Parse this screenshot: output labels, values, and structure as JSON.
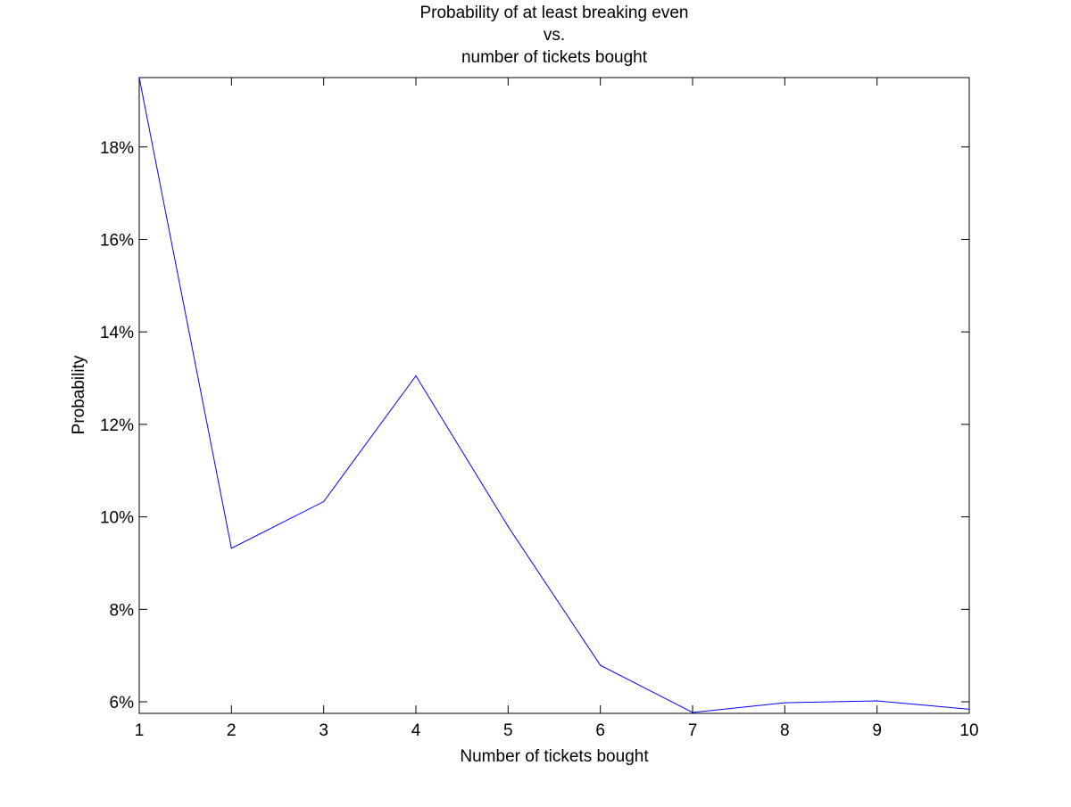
{
  "chart_data": {
    "type": "line",
    "title_lines": [
      "Probability of at least breaking even",
      "vs.",
      "number of tickets bought"
    ],
    "xlabel": "Number of tickets bought",
    "ylabel": "Probability",
    "xlim": [
      1,
      10
    ],
    "ylim": [
      0.0575,
      0.195
    ],
    "x_ticks": [
      1,
      2,
      3,
      4,
      5,
      6,
      7,
      8,
      9,
      10
    ],
    "x_tick_labels": [
      "1",
      "2",
      "3",
      "4",
      "5",
      "6",
      "7",
      "8",
      "9",
      "10"
    ],
    "y_ticks": [
      0.06,
      0.08,
      0.1,
      0.12,
      0.14,
      0.16,
      0.18
    ],
    "y_tick_labels": [
      "6%",
      "8%",
      "10%",
      "12%",
      "14%",
      "16%",
      "18%"
    ],
    "grid": false,
    "series": [
      {
        "color": "#0000ff",
        "x": [
          1,
          2,
          3,
          4,
          5,
          6,
          7,
          8,
          9,
          10
        ],
        "y": [
          0.195,
          0.0932,
          0.1033,
          0.1305,
          0.0979,
          0.0679,
          0.0577,
          0.0598,
          0.0602,
          0.0584
        ]
      }
    ]
  }
}
